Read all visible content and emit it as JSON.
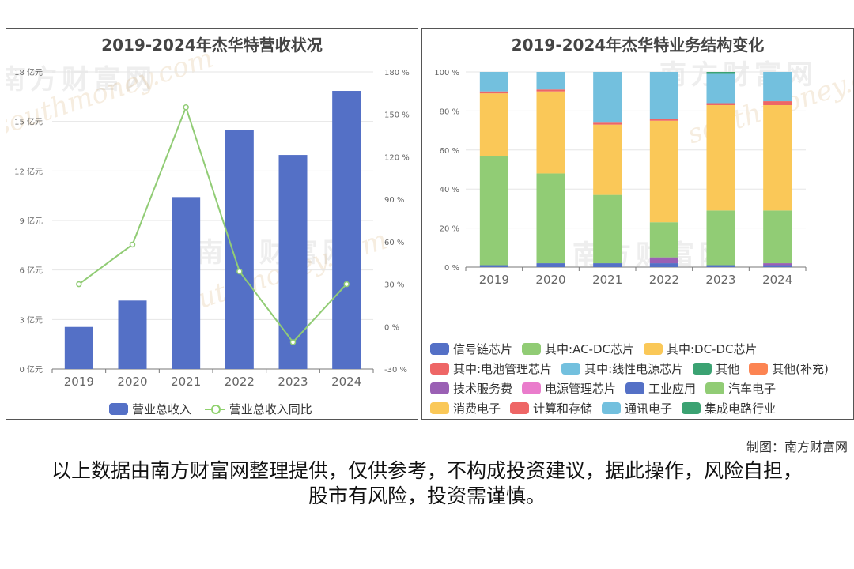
{
  "watermark": {
    "cn": "南方财富网",
    "en": "southmoney.com"
  },
  "credit": "制图：南方财富网",
  "disclaimer": "以上数据由南方财富网整理提供，仅供参考，不构成投资建议，据此操作，风险自担，股市有风险，投资需谨慎。",
  "chart_data": [
    {
      "type": "bar",
      "title": "2019-2024年杰华特营收状况",
      "categories": [
        "2019",
        "2020",
        "2021",
        "2022",
        "2023",
        "2024"
      ],
      "series": [
        {
          "name": "营业总收入",
          "kind": "bar",
          "axis": "left",
          "color": "#5470c6",
          "values": [
            2.55,
            4.15,
            10.42,
            14.47,
            12.97,
            16.85
          ]
        },
        {
          "name": "营业总收入同比",
          "kind": "line",
          "axis": "right",
          "color": "#91cc75",
          "values": [
            30,
            58,
            155,
            39,
            -11,
            30
          ]
        }
      ],
      "y_left": {
        "min": 0,
        "max": 18,
        "ticks": [
          "0 亿元",
          "3 亿元",
          "6 亿元",
          "9 亿元",
          "12 亿元",
          "15 亿元",
          "18 亿元"
        ]
      },
      "y_right": {
        "min": -30,
        "max": 180,
        "ticks": [
          "-30 %",
          "0 %",
          "30 %",
          "60 %",
          "90 %",
          "120 %",
          "150 %",
          "180 %"
        ]
      },
      "legend_position": "bottom"
    },
    {
      "type": "bar",
      "stacked": true,
      "title": "2019-2024年杰华特业务结构变化",
      "categories": [
        "2019",
        "2020",
        "2021",
        "2022",
        "2023",
        "2024"
      ],
      "y": {
        "min": 0,
        "max": 100,
        "ticks": [
          "0 %",
          "20 %",
          "40 %",
          "60 %",
          "80 %",
          "100 %"
        ]
      },
      "series": [
        {
          "name": "信号链芯片",
          "color": "#5470c6",
          "values": [
            1,
            2,
            2,
            2,
            0,
            1
          ]
        },
        {
          "name": "其中:AC-DC芯片",
          "color": "#91cc75",
          "values": [
            56,
            46,
            35,
            0,
            0,
            0
          ]
        },
        {
          "name": "其中:DC-DC芯片",
          "color": "#fac858",
          "values": [
            32,
            42,
            36,
            0,
            0,
            0
          ]
        },
        {
          "name": "其中:电池管理芯片",
          "color": "#ee6666",
          "values": [
            1,
            1,
            1,
            0,
            0,
            0
          ]
        },
        {
          "name": "其中:线性电源芯片",
          "color": "#73c0de",
          "values": [
            10,
            9,
            26,
            0,
            0,
            0
          ]
        },
        {
          "name": "其他",
          "color": "#3ba272",
          "values": [
            0,
            0,
            0,
            0,
            0,
            0
          ]
        },
        {
          "name": "其他(补充)",
          "color": "#fc8452",
          "values": [
            0,
            0,
            0,
            0,
            0,
            0
          ]
        },
        {
          "name": "技术服务费",
          "color": "#9a60b4",
          "values": [
            0,
            0,
            0,
            3,
            0,
            1
          ]
        },
        {
          "name": "电源管理芯片",
          "color": "#ea7ccc",
          "values": [
            0,
            0,
            0,
            0,
            0,
            0
          ]
        },
        {
          "name": "工业应用",
          "color": "#5470c6",
          "values": [
            0,
            0,
            0,
            0,
            1,
            0
          ]
        },
        {
          "name": "汽车电子",
          "color": "#91cc75",
          "values": [
            0,
            0,
            0,
            18,
            28,
            27
          ]
        },
        {
          "name": "消费电子",
          "color": "#fac858",
          "values": [
            0,
            0,
            0,
            52,
            54,
            54
          ]
        },
        {
          "name": "计算和存储",
          "color": "#ee6666",
          "values": [
            0,
            0,
            0,
            1,
            1,
            2
          ]
        },
        {
          "name": "通讯电子",
          "color": "#73c0de",
          "values": [
            0,
            0,
            0,
            24,
            15,
            15
          ]
        },
        {
          "name": "集成电路行业",
          "color": "#3ba272",
          "values": [
            0,
            0,
            0,
            0,
            1,
            0
          ]
        }
      ],
      "legend_position": "bottom"
    }
  ]
}
